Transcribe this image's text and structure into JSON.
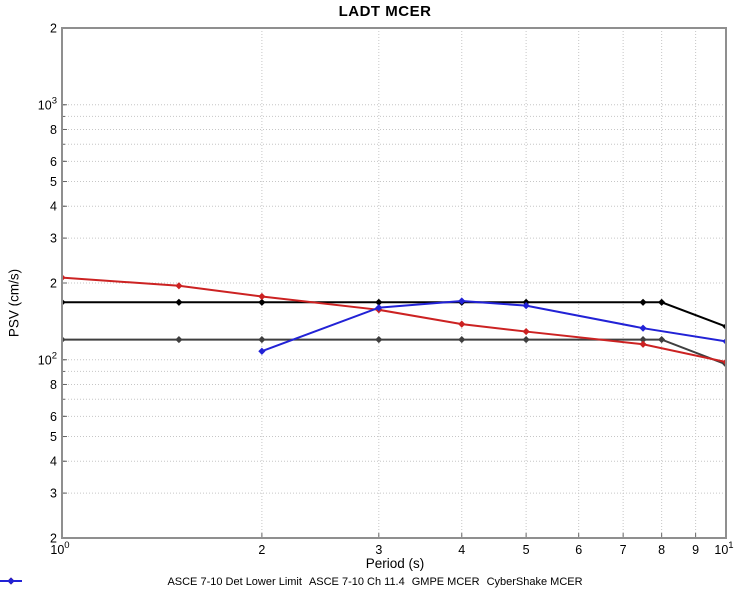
{
  "chart_data": {
    "type": "line",
    "title": "LADT MCER",
    "xlabel": "Period (s)",
    "ylabel": "PSV (cm/s)",
    "x_scale": "log",
    "y_scale": "log",
    "xlim": [
      1,
      10
    ],
    "ylim": [
      20,
      2000
    ],
    "grid": "dotted minor+major log grid, both axes",
    "legend_position": "bottom",
    "x_grid": [
      2,
      3,
      4,
      5,
      6,
      7,
      8,
      9
    ],
    "y_grid": [
      1000,
      900,
      800,
      700,
      600,
      500,
      400,
      300,
      200,
      100,
      90,
      80,
      70,
      60,
      50,
      40,
      30
    ],
    "x_ticks": [
      {
        "v": 1,
        "t": "10",
        "e": "0"
      },
      {
        "v": 2,
        "t": "2"
      },
      {
        "v": 3,
        "t": "3"
      },
      {
        "v": 4,
        "t": "4"
      },
      {
        "v": 5,
        "t": "5"
      },
      {
        "v": 6,
        "t": "6"
      },
      {
        "v": 7,
        "t": "7"
      },
      {
        "v": 8,
        "t": "8"
      },
      {
        "v": 9,
        "t": "9"
      },
      {
        "v": 10,
        "t": "10",
        "e": "1"
      }
    ],
    "y_ticks": [
      {
        "v": 2000,
        "t": "2"
      },
      {
        "v": 1000,
        "t": "10",
        "e": "3"
      },
      {
        "v": 800,
        "t": "8"
      },
      {
        "v": 600,
        "t": "6"
      },
      {
        "v": 500,
        "t": "5"
      },
      {
        "v": 400,
        "t": "4"
      },
      {
        "v": 300,
        "t": "3"
      },
      {
        "v": 200,
        "t": "2"
      },
      {
        "v": 100,
        "t": "10",
        "e": "2"
      },
      {
        "v": 80,
        "t": "8"
      },
      {
        "v": 60,
        "t": "6"
      },
      {
        "v": 50,
        "t": "5"
      },
      {
        "v": 40,
        "t": "4"
      },
      {
        "v": 30,
        "t": "3"
      },
      {
        "v": 20,
        "t": "2"
      }
    ],
    "series": [
      {
        "name": "ASCE 7-10 Det Lower Limit",
        "color": "#3f3f3f",
        "x": [
          1,
          1.5,
          2,
          3,
          4,
          5,
          7.5,
          8,
          10
        ],
        "y": [
          120,
          120,
          120,
          120,
          120,
          120,
          120,
          120,
          96
        ]
      },
      {
        "name": "ASCE 7-10 Ch 11.4",
        "color": "#000000",
        "x": [
          1,
          1.5,
          2,
          3,
          4,
          5,
          7.5,
          8,
          10
        ],
        "y": [
          168,
          168,
          168,
          168,
          168,
          168,
          168,
          168,
          135
        ]
      },
      {
        "name": "GMPE MCER",
        "color": "#cc2222",
        "x": [
          1,
          1.5,
          2,
          3,
          4,
          5,
          7.5,
          10
        ],
        "y": [
          210,
          195,
          177,
          157,
          138,
          129,
          115,
          98
        ]
      },
      {
        "name": "CyberShake MCER",
        "color": "#2222d6",
        "x": [
          2,
          3,
          4,
          5,
          7.5,
          10
        ],
        "y": [
          108,
          160,
          170,
          163,
          133,
          118
        ]
      }
    ],
    "style": {
      "axis_box_color": "#8f8f8f",
      "grid_color": "#c6c6c6",
      "tick_color": "#666666",
      "text_color": "#000000",
      "marker": "diamond"
    }
  }
}
